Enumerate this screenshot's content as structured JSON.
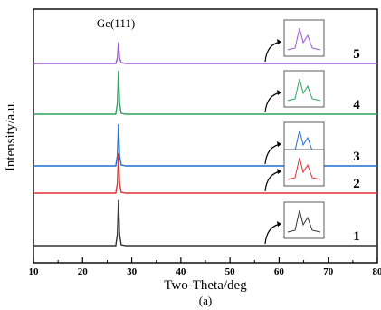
{
  "chart_data": {
    "type": "line",
    "xlabel": "Two-Theta/deg",
    "ylabel": "Intensity/a.u.",
    "caption": "(a)",
    "peak_label": "Ge(111)",
    "xlim": [
      10,
      80
    ],
    "x_ticks": [
      10,
      20,
      30,
      40,
      50,
      60,
      70,
      80
    ],
    "x_tick_labels": [
      "10",
      "20",
      "30",
      "40",
      "50",
      "60",
      "70",
      "80"
    ],
    "peak_x": 27.3,
    "grid": false,
    "series": [
      {
        "name": "5",
        "color": "#9b59d0",
        "peak_height": 0.42
      },
      {
        "name": "4",
        "color": "#2ca25f",
        "peak_height": 0.86
      },
      {
        "name": "3",
        "color": "#1f6fd1",
        "peak_height": 0.82
      },
      {
        "name": "2",
        "color": "#e03030",
        "peak_height": 0.78
      },
      {
        "name": "1",
        "color": "#333333",
        "peak_height": 0.9
      }
    ]
  }
}
